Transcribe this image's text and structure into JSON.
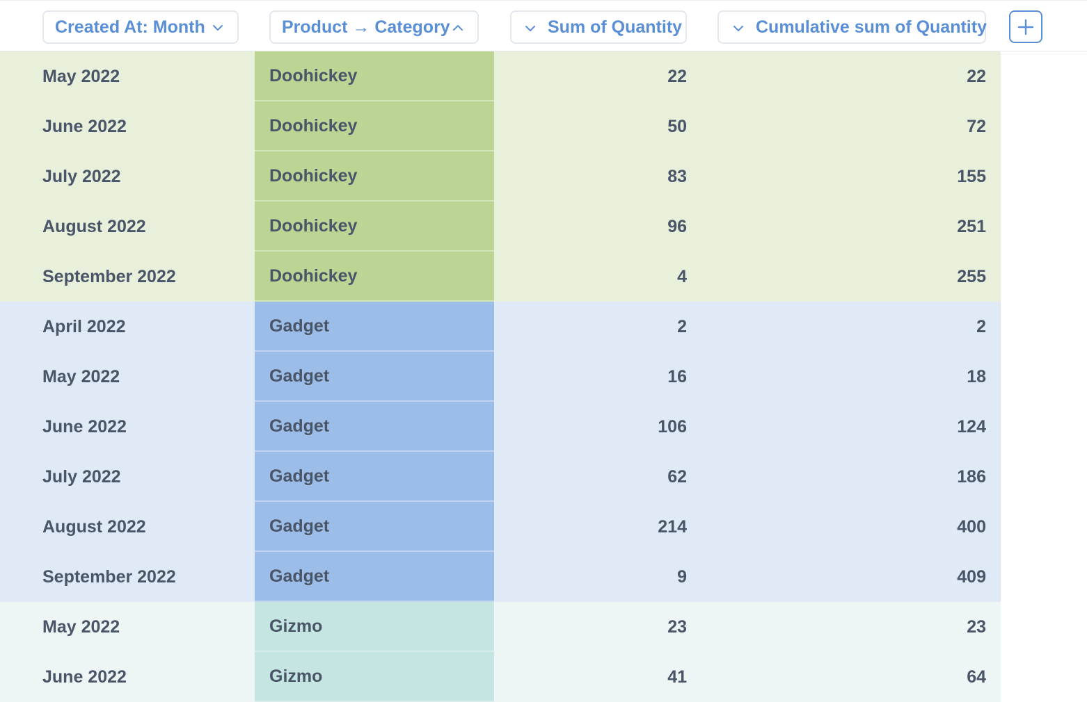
{
  "header": {
    "columns": [
      {
        "label": "Created At: Month",
        "icon": "chevron-down-icon"
      },
      {
        "label": "Product → Category",
        "icon": "chevron-up-icon"
      },
      {
        "label": "Sum of Quantity",
        "icon": "chevron-down-icon"
      },
      {
        "label": "Cumulative sum of Quantity",
        "icon": "chevron-down-icon"
      }
    ],
    "add_icon": "plus-icon"
  },
  "colors": {
    "accent": "#5a8fd6",
    "text": "#4a5568",
    "doohickey_row": "#e8f0dc",
    "doohickey_cell": "#bcd595",
    "gadget_row": "#dfeaf6",
    "gadget_cell": "#9bbde8",
    "gizmo_row": "#edf6f5",
    "gizmo_cell": "#c5e5e2"
  },
  "rows": [
    {
      "month": "May 2022",
      "category": "Doohickey",
      "sum": "22",
      "cumulative": "22"
    },
    {
      "month": "June 2022",
      "category": "Doohickey",
      "sum": "50",
      "cumulative": "72"
    },
    {
      "month": "July 2022",
      "category": "Doohickey",
      "sum": "83",
      "cumulative": "155"
    },
    {
      "month": "August 2022",
      "category": "Doohickey",
      "sum": "96",
      "cumulative": "251"
    },
    {
      "month": "September 2022",
      "category": "Doohickey",
      "sum": "4",
      "cumulative": "255"
    },
    {
      "month": "April 2022",
      "category": "Gadget",
      "sum": "2",
      "cumulative": "2"
    },
    {
      "month": "May 2022",
      "category": "Gadget",
      "sum": "16",
      "cumulative": "18"
    },
    {
      "month": "June 2022",
      "category": "Gadget",
      "sum": "106",
      "cumulative": "124"
    },
    {
      "month": "July 2022",
      "category": "Gadget",
      "sum": "62",
      "cumulative": "186"
    },
    {
      "month": "August 2022",
      "category": "Gadget",
      "sum": "214",
      "cumulative": "400"
    },
    {
      "month": "September 2022",
      "category": "Gadget",
      "sum": "9",
      "cumulative": "409"
    },
    {
      "month": "May 2022",
      "category": "Gizmo",
      "sum": "23",
      "cumulative": "23"
    },
    {
      "month": "June 2022",
      "category": "Gizmo",
      "sum": "41",
      "cumulative": "64"
    }
  ]
}
